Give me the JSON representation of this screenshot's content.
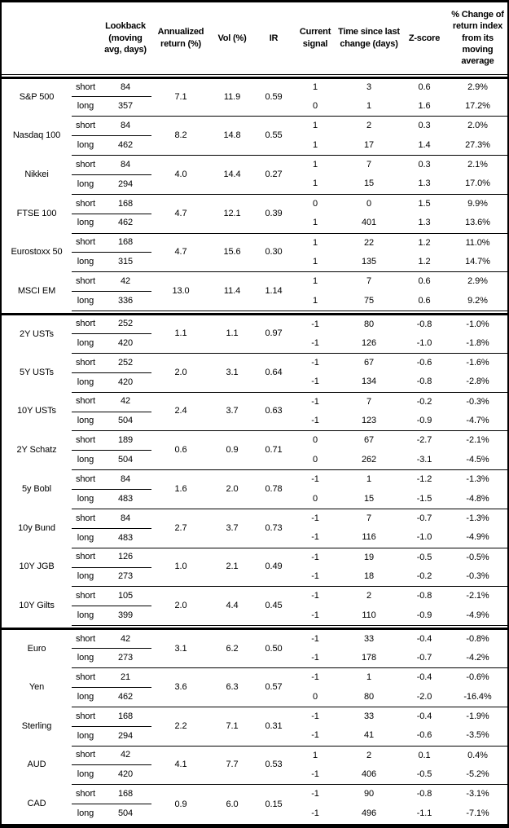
{
  "table": {
    "header": {
      "columns": [
        {
          "label": ""
        },
        {
          "label": ""
        },
        {
          "label": "Lookback (moving avg, days)"
        },
        {
          "label": "Annualized return (%)"
        },
        {
          "label": "Vol (%)"
        },
        {
          "label": "IR"
        },
        {
          "label": "Current signal"
        },
        {
          "label": "Time since last change (days)"
        },
        {
          "label": "Z-score"
        },
        {
          "label": "% Change of return index from its moving average"
        }
      ]
    },
    "horizon_labels": {
      "short": "short",
      "long": "long"
    },
    "groups": [
      {
        "name": "equity-indices",
        "assets": [
          {
            "name": "S&P 500",
            "annualized_return_pct": "7.1",
            "vol_pct": "11.9",
            "ir": "0.59",
            "short": {
              "lookback": "84",
              "current_signal": "1",
              "time_since_change_days": "3",
              "zscore": "0.6",
              "pct_change_from_ma": "2.9%"
            },
            "long": {
              "lookback": "357",
              "current_signal": "0",
              "time_since_change_days": "1",
              "zscore": "1.6",
              "pct_change_from_ma": "17.2%"
            }
          },
          {
            "name": "Nasdaq 100",
            "annualized_return_pct": "8.2",
            "vol_pct": "14.8",
            "ir": "0.55",
            "short": {
              "lookback": "84",
              "current_signal": "1",
              "time_since_change_days": "2",
              "zscore": "0.3",
              "pct_change_from_ma": "2.0%"
            },
            "long": {
              "lookback": "462",
              "current_signal": "1",
              "time_since_change_days": "17",
              "zscore": "1.4",
              "pct_change_from_ma": "27.3%"
            }
          },
          {
            "name": "Nikkei",
            "annualized_return_pct": "4.0",
            "vol_pct": "14.4",
            "ir": "0.27",
            "short": {
              "lookback": "84",
              "current_signal": "1",
              "time_since_change_days": "7",
              "zscore": "0.3",
              "pct_change_from_ma": "2.1%"
            },
            "long": {
              "lookback": "294",
              "current_signal": "1",
              "time_since_change_days": "15",
              "zscore": "1.3",
              "pct_change_from_ma": "17.0%"
            }
          },
          {
            "name": "FTSE 100",
            "annualized_return_pct": "4.7",
            "vol_pct": "12.1",
            "ir": "0.39",
            "short": {
              "lookback": "168",
              "current_signal": "0",
              "time_since_change_days": "0",
              "zscore": "1.5",
              "pct_change_from_ma": "9.9%"
            },
            "long": {
              "lookback": "462",
              "current_signal": "1",
              "time_since_change_days": "401",
              "zscore": "1.3",
              "pct_change_from_ma": "13.6%"
            }
          },
          {
            "name": "Eurostoxx 50",
            "annualized_return_pct": "4.7",
            "vol_pct": "15.6",
            "ir": "0.30",
            "short": {
              "lookback": "168",
              "current_signal": "1",
              "time_since_change_days": "22",
              "zscore": "1.2",
              "pct_change_from_ma": "11.0%"
            },
            "long": {
              "lookback": "315",
              "current_signal": "1",
              "time_since_change_days": "135",
              "zscore": "1.2",
              "pct_change_from_ma": "14.7%"
            }
          },
          {
            "name": "MSCI EM",
            "annualized_return_pct": "13.0",
            "vol_pct": "11.4",
            "ir": "1.14",
            "short": {
              "lookback": "42",
              "current_signal": "1",
              "time_since_change_days": "7",
              "zscore": "0.6",
              "pct_change_from_ma": "2.9%"
            },
            "long": {
              "lookback": "336",
              "current_signal": "1",
              "time_since_change_days": "75",
              "zscore": "0.6",
              "pct_change_from_ma": "9.2%"
            }
          }
        ]
      },
      {
        "name": "rates",
        "assets": [
          {
            "name": "2Y USTs",
            "annualized_return_pct": "1.1",
            "vol_pct": "1.1",
            "ir": "0.97",
            "short": {
              "lookback": "252",
              "current_signal": "-1",
              "time_since_change_days": "80",
              "zscore": "-0.8",
              "pct_change_from_ma": "-1.0%"
            },
            "long": {
              "lookback": "420",
              "current_signal": "-1",
              "time_since_change_days": "126",
              "zscore": "-1.0",
              "pct_change_from_ma": "-1.8%"
            }
          },
          {
            "name": "5Y USTs",
            "annualized_return_pct": "2.0",
            "vol_pct": "3.1",
            "ir": "0.64",
            "short": {
              "lookback": "252",
              "current_signal": "-1",
              "time_since_change_days": "67",
              "zscore": "-0.6",
              "pct_change_from_ma": "-1.6%"
            },
            "long": {
              "lookback": "420",
              "current_signal": "-1",
              "time_since_change_days": "134",
              "zscore": "-0.8",
              "pct_change_from_ma": "-2.8%"
            }
          },
          {
            "name": "10Y USTs",
            "annualized_return_pct": "2.4",
            "vol_pct": "3.7",
            "ir": "0.63",
            "short": {
              "lookback": "42",
              "current_signal": "-1",
              "time_since_change_days": "7",
              "zscore": "-0.2",
              "pct_change_from_ma": "-0.3%"
            },
            "long": {
              "lookback": "504",
              "current_signal": "-1",
              "time_since_change_days": "123",
              "zscore": "-0.9",
              "pct_change_from_ma": "-4.7%"
            }
          },
          {
            "name": "2Y Schatz",
            "annualized_return_pct": "0.6",
            "vol_pct": "0.9",
            "ir": "0.71",
            "short": {
              "lookback": "189",
              "current_signal": "0",
              "time_since_change_days": "67",
              "zscore": "-2.7",
              "pct_change_from_ma": "-2.1%"
            },
            "long": {
              "lookback": "504",
              "current_signal": "0",
              "time_since_change_days": "262",
              "zscore": "-3.1",
              "pct_change_from_ma": "-4.5%"
            }
          },
          {
            "name": "5y Bobl",
            "annualized_return_pct": "1.6",
            "vol_pct": "2.0",
            "ir": "0.78",
            "short": {
              "lookback": "84",
              "current_signal": "-1",
              "time_since_change_days": "1",
              "zscore": "-1.2",
              "pct_change_from_ma": "-1.3%"
            },
            "long": {
              "lookback": "483",
              "current_signal": "0",
              "time_since_change_days": "15",
              "zscore": "-1.5",
              "pct_change_from_ma": "-4.8%"
            }
          },
          {
            "name": "10y Bund",
            "annualized_return_pct": "2.7",
            "vol_pct": "3.7",
            "ir": "0.73",
            "short": {
              "lookback": "84",
              "current_signal": "-1",
              "time_since_change_days": "7",
              "zscore": "-0.7",
              "pct_change_from_ma": "-1.3%"
            },
            "long": {
              "lookback": "483",
              "current_signal": "-1",
              "time_since_change_days": "116",
              "zscore": "-1.0",
              "pct_change_from_ma": "-4.9%"
            }
          },
          {
            "name": "10Y JGB",
            "annualized_return_pct": "1.0",
            "vol_pct": "2.1",
            "ir": "0.49",
            "short": {
              "lookback": "126",
              "current_signal": "-1",
              "time_since_change_days": "19",
              "zscore": "-0.5",
              "pct_change_from_ma": "-0.5%"
            },
            "long": {
              "lookback": "273",
              "current_signal": "-1",
              "time_since_change_days": "18",
              "zscore": "-0.2",
              "pct_change_from_ma": "-0.3%"
            }
          },
          {
            "name": "10Y Gilts",
            "annualized_return_pct": "2.0",
            "vol_pct": "4.4",
            "ir": "0.45",
            "short": {
              "lookback": "105",
              "current_signal": "-1",
              "time_since_change_days": "2",
              "zscore": "-0.8",
              "pct_change_from_ma": "-2.1%"
            },
            "long": {
              "lookback": "399",
              "current_signal": "-1",
              "time_since_change_days": "110",
              "zscore": "-0.9",
              "pct_change_from_ma": "-4.9%"
            }
          }
        ]
      },
      {
        "name": "fx",
        "assets": [
          {
            "name": "Euro",
            "annualized_return_pct": "3.1",
            "vol_pct": "6.2",
            "ir": "0.50",
            "short": {
              "lookback": "42",
              "current_signal": "-1",
              "time_since_change_days": "33",
              "zscore": "-0.4",
              "pct_change_from_ma": "-0.8%"
            },
            "long": {
              "lookback": "273",
              "current_signal": "-1",
              "time_since_change_days": "178",
              "zscore": "-0.7",
              "pct_change_from_ma": "-4.2%"
            }
          },
          {
            "name": "Yen",
            "annualized_return_pct": "3.6",
            "vol_pct": "6.3",
            "ir": "0.57",
            "short": {
              "lookback": "21",
              "current_signal": "-1",
              "time_since_change_days": "1",
              "zscore": "-0.4",
              "pct_change_from_ma": "-0.6%"
            },
            "long": {
              "lookback": "462",
              "current_signal": "0",
              "time_since_change_days": "80",
              "zscore": "-2.0",
              "pct_change_from_ma": "-16.4%"
            }
          },
          {
            "name": "Sterling",
            "annualized_return_pct": "2.2",
            "vol_pct": "7.1",
            "ir": "0.31",
            "short": {
              "lookback": "168",
              "current_signal": "-1",
              "time_since_change_days": "33",
              "zscore": "-0.4",
              "pct_change_from_ma": "-1.9%"
            },
            "long": {
              "lookback": "294",
              "current_signal": "-1",
              "time_since_change_days": "41",
              "zscore": "-0.6",
              "pct_change_from_ma": "-3.5%"
            }
          },
          {
            "name": "AUD",
            "annualized_return_pct": "4.1",
            "vol_pct": "7.7",
            "ir": "0.53",
            "short": {
              "lookback": "42",
              "current_signal": "1",
              "time_since_change_days": "2",
              "zscore": "0.1",
              "pct_change_from_ma": "0.4%"
            },
            "long": {
              "lookback": "420",
              "current_signal": "-1",
              "time_since_change_days": "406",
              "zscore": "-0.5",
              "pct_change_from_ma": "-5.2%"
            }
          },
          {
            "name": "CAD",
            "annualized_return_pct": "0.9",
            "vol_pct": "6.0",
            "ir": "0.15",
            "short": {
              "lookback": "168",
              "current_signal": "-1",
              "time_since_change_days": "90",
              "zscore": "-0.8",
              "pct_change_from_ma": "-3.1%"
            },
            "long": {
              "lookback": "504",
              "current_signal": "-1",
              "time_since_change_days": "496",
              "zscore": "-1.1",
              "pct_change_from_ma": "-7.1%"
            }
          }
        ]
      }
    ]
  }
}
